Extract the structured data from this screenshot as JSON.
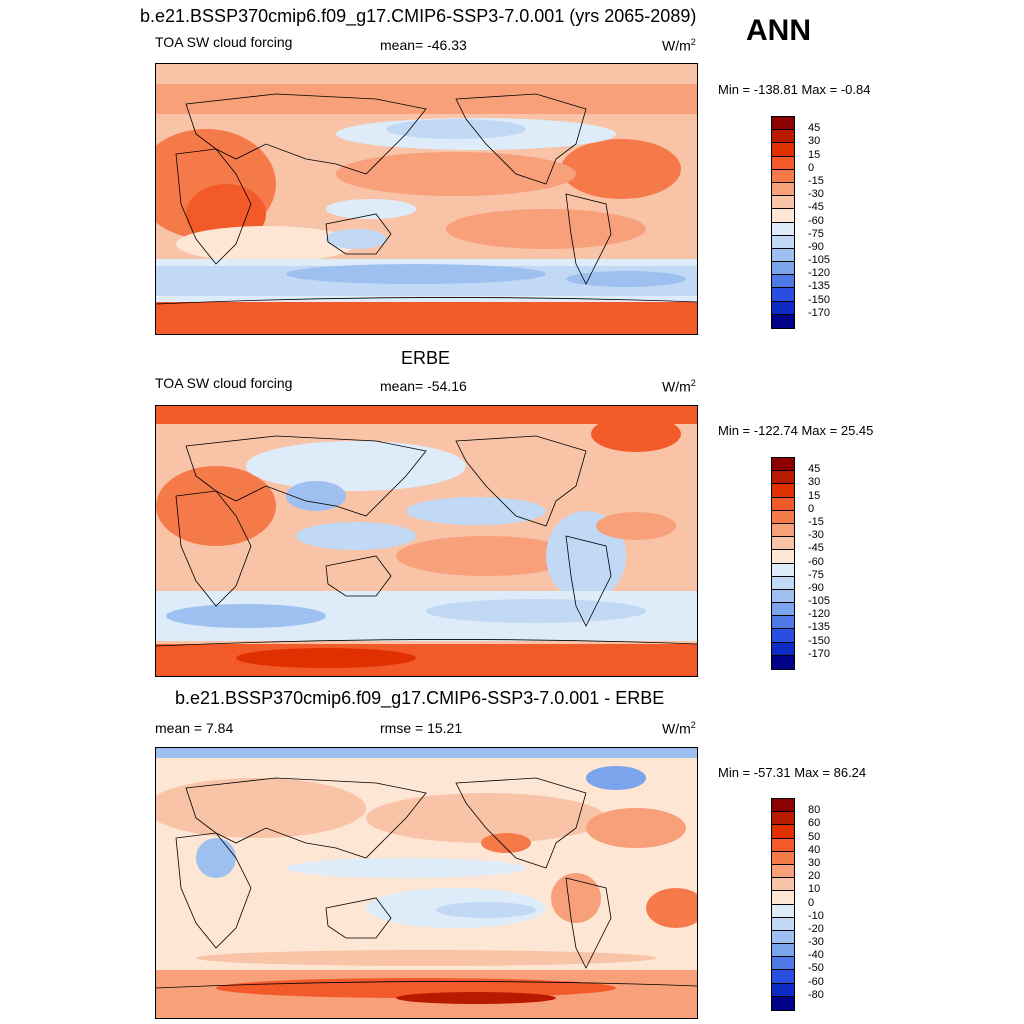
{
  "header": {
    "title": "b.e21.BSSP370cmip6.f09_g17.CMIP6-SSP3-7.0.001 (yrs 2065-2089)",
    "season": "ANN"
  },
  "panels": [
    {
      "id": "model",
      "title": "",
      "left_label": "TOA SW cloud forcing",
      "center_label": "mean= -46.33",
      "unit": "W/m",
      "unit_sup": "2",
      "minmax": "Min = -138.81 Max =  -0.84",
      "colorbar": {
        "labels": [
          "45",
          "30",
          "15",
          "0",
          "-15",
          "-30",
          "-45",
          "-60",
          "-75",
          "-90",
          "-105",
          "-120",
          "-135",
          "-150",
          "-170"
        ],
        "colors": [
          "#8b0000",
          "#b81a00",
          "#e03000",
          "#f25a2a",
          "#f57a4a",
          "#f7a07a",
          "#f9c3a8",
          "#fde6d4",
          "#deecfa",
          "#c1d9f5",
          "#9dc0f0",
          "#7aa4ec",
          "#4f7ae6",
          "#2a4fe0",
          "#0e2ac4",
          "#000088"
        ]
      }
    },
    {
      "id": "obs",
      "title": "ERBE",
      "left_label": "TOA SW cloud forcing",
      "center_label": "mean= -54.16",
      "unit": "W/m",
      "unit_sup": "2",
      "minmax": "Min = -122.74 Max =  25.45",
      "colorbar": {
        "labels": [
          "45",
          "30",
          "15",
          "0",
          "-15",
          "-30",
          "-45",
          "-60",
          "-75",
          "-90",
          "-105",
          "-120",
          "-135",
          "-150",
          "-170"
        ],
        "colors": [
          "#8b0000",
          "#b81a00",
          "#e03000",
          "#f25a2a",
          "#f57a4a",
          "#f7a07a",
          "#f9c3a8",
          "#fde6d4",
          "#deecfa",
          "#c1d9f5",
          "#9dc0f0",
          "#7aa4ec",
          "#4f7ae6",
          "#2a4fe0",
          "#0e2ac4",
          "#000088"
        ]
      }
    },
    {
      "id": "diff",
      "title": "b.e21.BSSP370cmip6.f09_g17.CMIP6-SSP3-7.0.001 - ERBE",
      "left_label": "mean =   7.84",
      "center_label": "rmse =  15.21",
      "unit": "W/m",
      "unit_sup": "2",
      "minmax": "Min = -57.31 Max =  86.24",
      "colorbar": {
        "labels": [
          "80",
          "60",
          "50",
          "40",
          "30",
          "20",
          "10",
          "0",
          "-10",
          "-20",
          "-30",
          "-40",
          "-50",
          "-60",
          "-80"
        ],
        "colors": [
          "#8b0000",
          "#b81a00",
          "#e03000",
          "#f25a2a",
          "#f57a4a",
          "#f7a07a",
          "#f9c3a8",
          "#fde6d4",
          "#deecfa",
          "#c1d9f5",
          "#9dc0f0",
          "#7aa4ec",
          "#4f7ae6",
          "#2a4fe0",
          "#0e2ac4",
          "#000088"
        ]
      }
    }
  ]
}
